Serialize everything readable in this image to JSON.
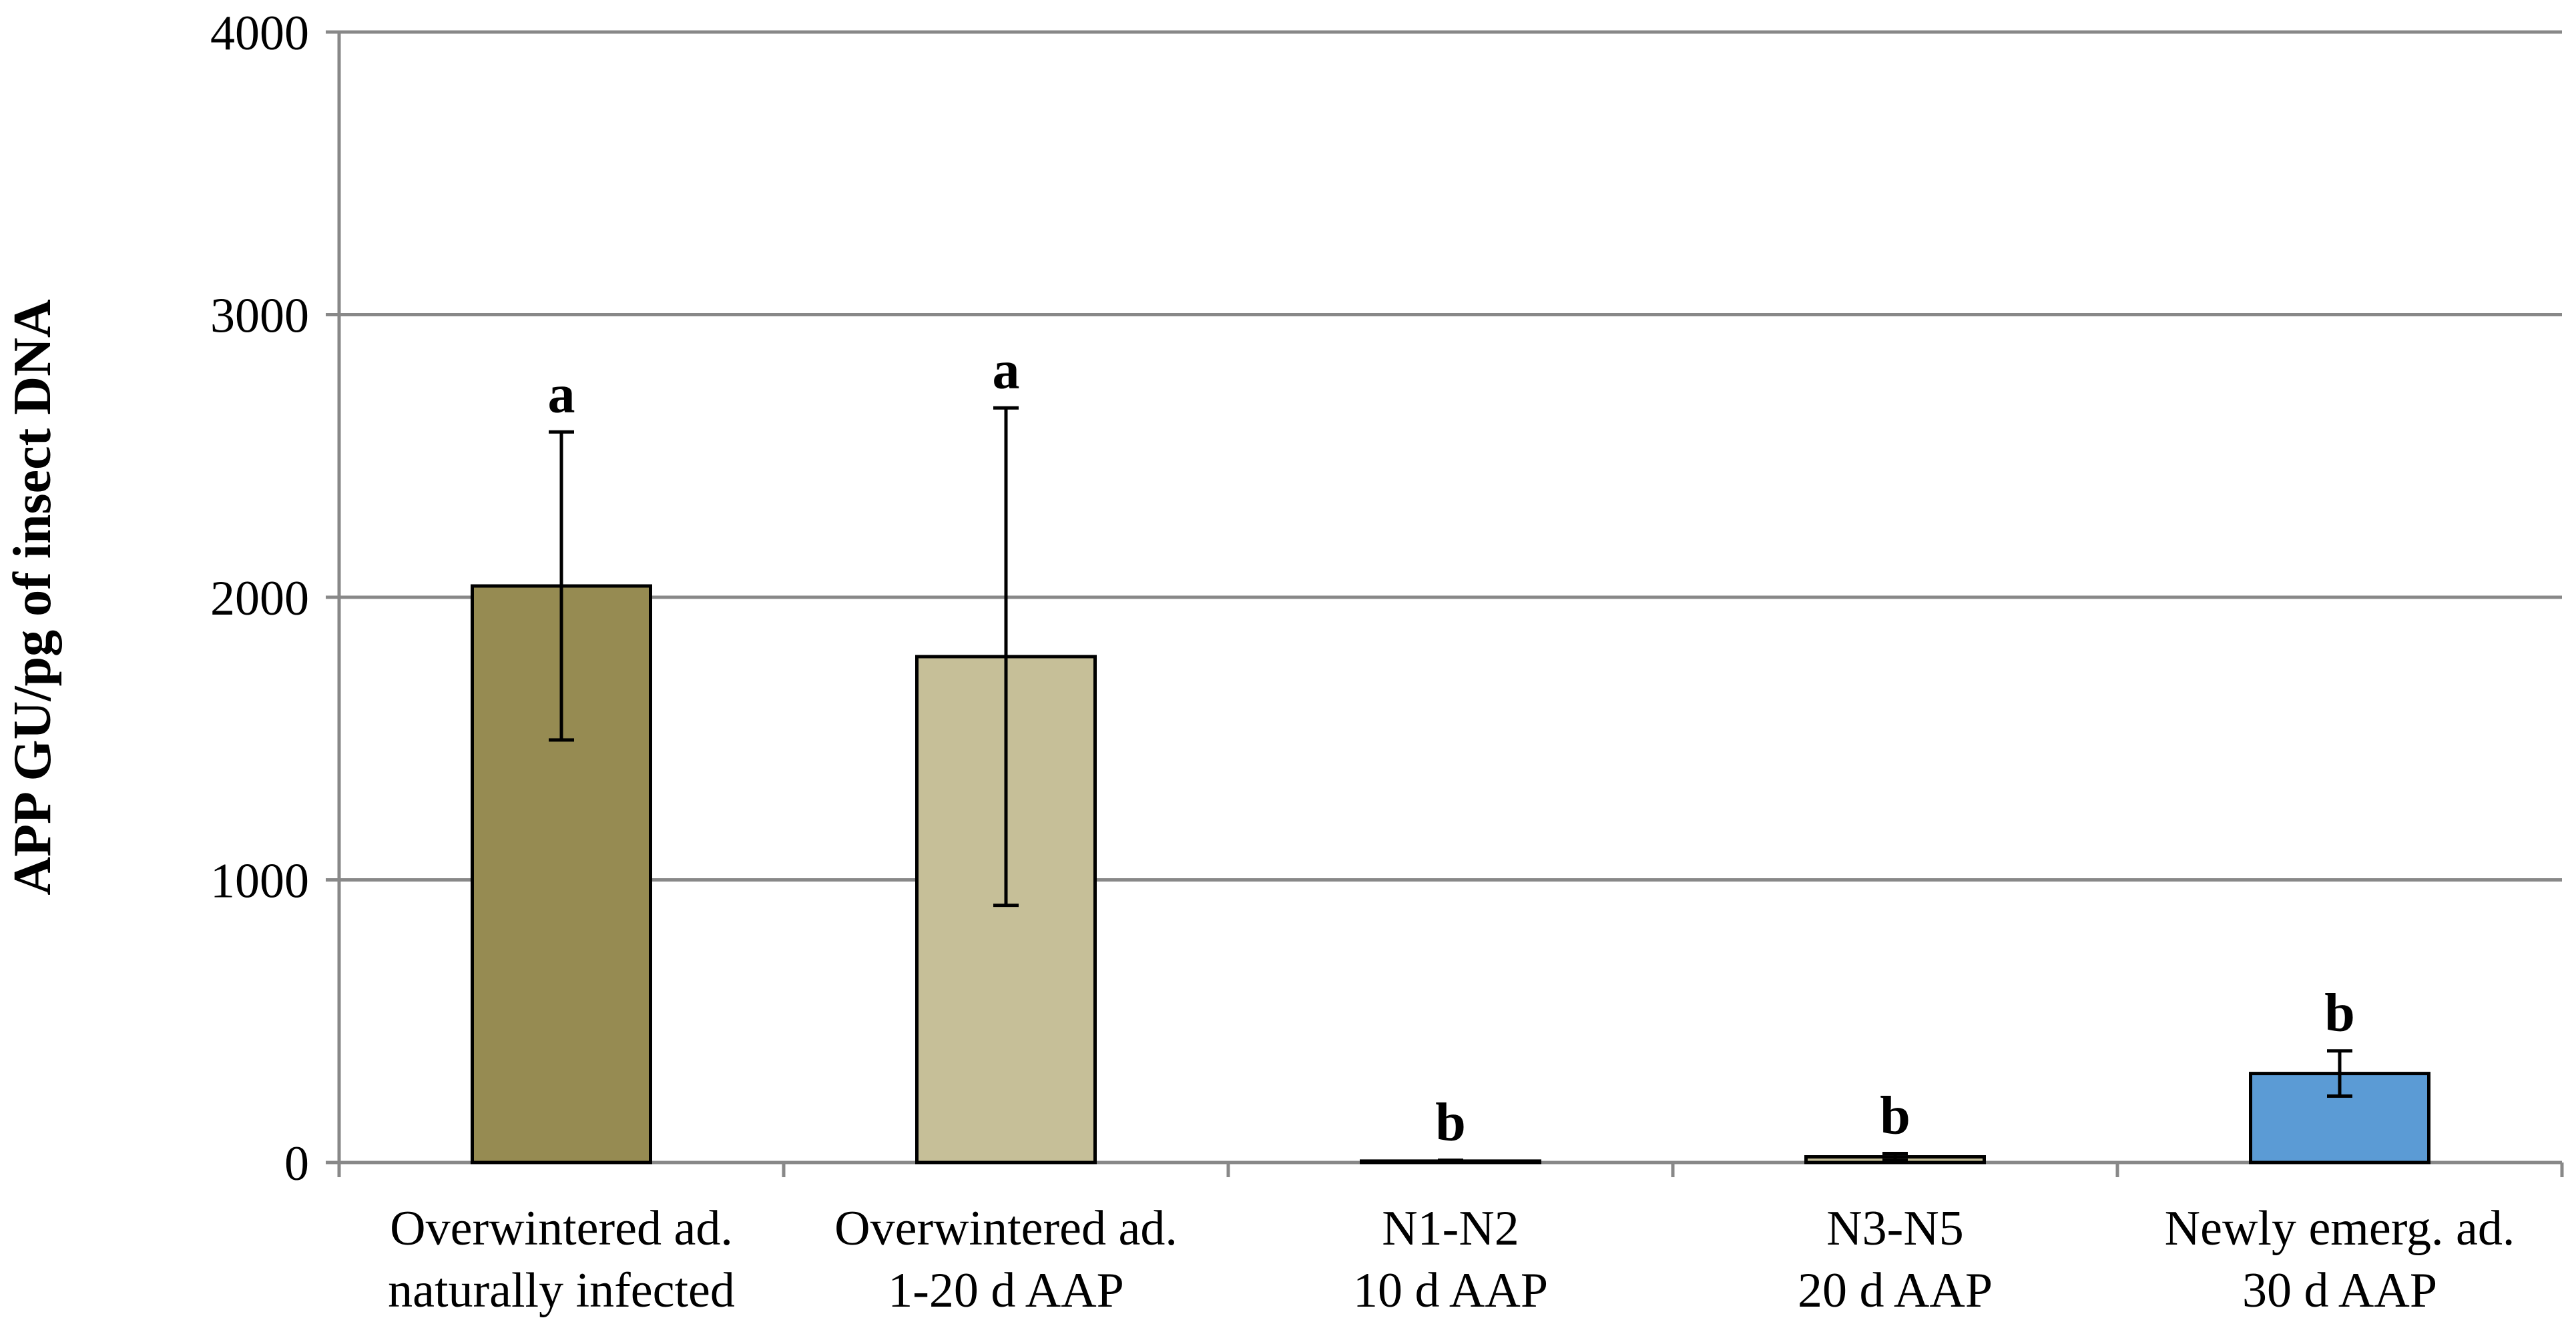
{
  "chart_data": {
    "type": "bar",
    "title": "",
    "xlabel": "",
    "ylabel": "APP GU/pg of insect DNA",
    "ylim": [
      0,
      4000
    ],
    "yticks": [
      0,
      1000,
      2000,
      3000,
      4000
    ],
    "ytick_labels": [
      "0",
      "1000",
      "2000",
      "3000",
      "4000"
    ],
    "grid": true,
    "legend": "none",
    "categories": [
      [
        "Overwintered ad.",
        "naturally infected"
      ],
      [
        "Overwintered ad.",
        "1-20 d AAP"
      ],
      [
        "N1-N2",
        "10 d AAP"
      ],
      [
        "N3-N5",
        "20 d AAP"
      ],
      [
        "Newly emerg. ad.",
        "30 d AAP"
      ]
    ],
    "values": [
      2040,
      1790,
      5,
      20,
      315
    ],
    "errors": [
      545,
      880,
      3,
      12,
      80
    ],
    "significance": [
      "a",
      "a",
      "b",
      "b",
      "b"
    ],
    "colors": [
      "#968b52",
      "#c6bf98",
      "#968b52",
      "#c6bf98",
      "#5b9bd5"
    ],
    "bar_edge_color": "#000000",
    "grid_color": "#888888"
  }
}
